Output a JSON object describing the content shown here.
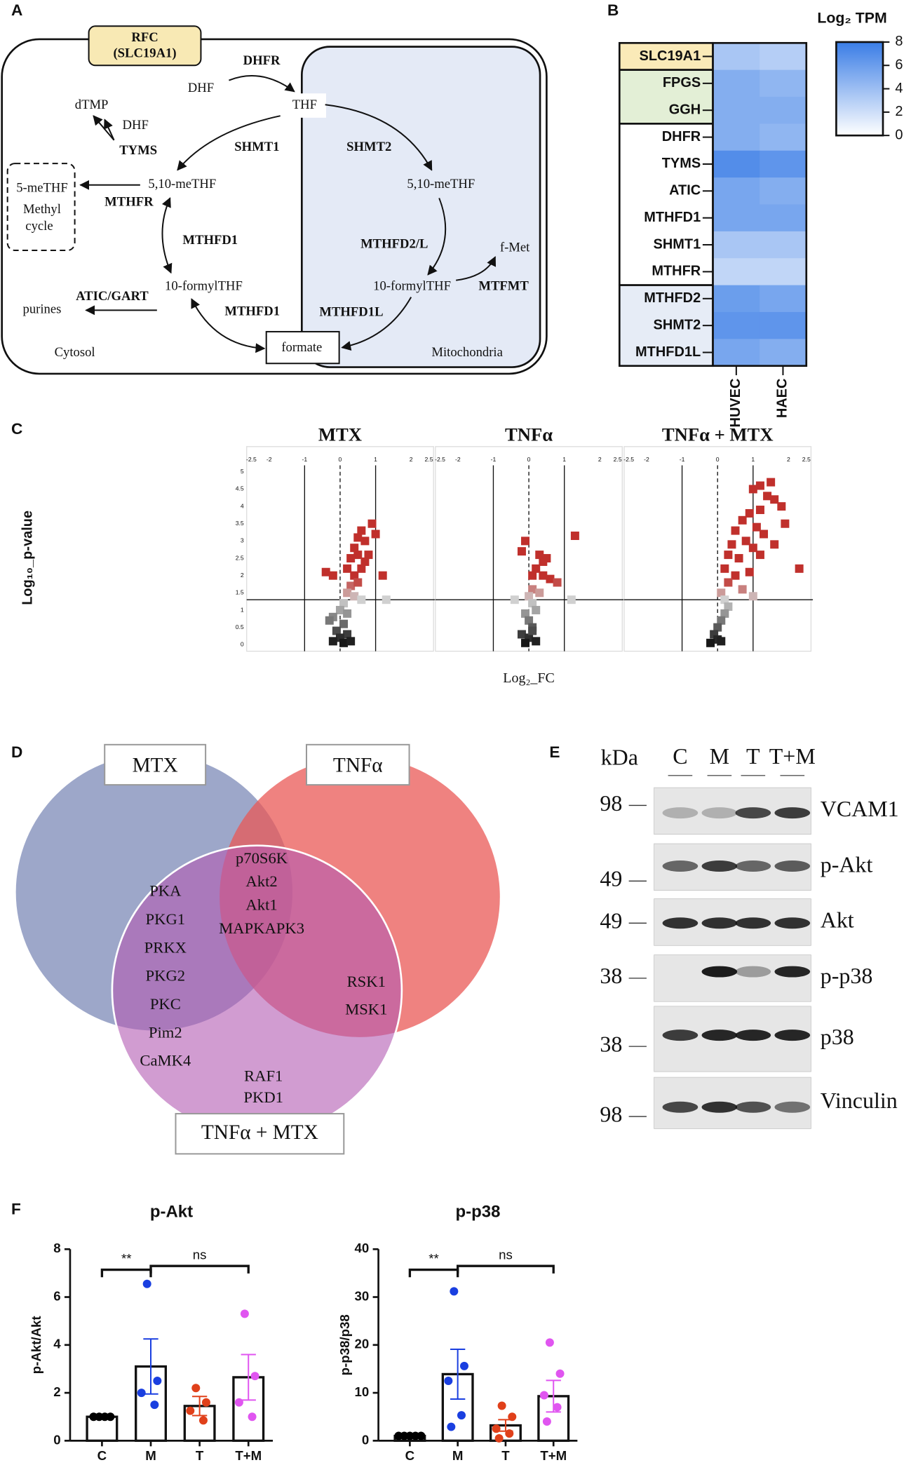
{
  "panel_labels": [
    "A",
    "B",
    "C",
    "D",
    "E",
    "F"
  ],
  "pathway": {
    "transporter": [
      "RFC",
      "(SLC19A1)"
    ],
    "enzymes": [
      "DHFR",
      "TYMS",
      "SHMT1",
      "SHMT2",
      "MTHFR",
      "MTHFD1",
      "MTHFD2/L",
      "MTFMT",
      "ATIC/GART",
      "MTHFD1",
      "MTHFD1L"
    ],
    "metabolites": [
      "DHF",
      "THF",
      "dTMP",
      "DHF",
      "5,10-meTHF",
      "5,10-meTHF",
      "5-meTHF",
      "Methyl",
      "cycle",
      "f-Met",
      "10-formylTHF",
      "10-formylTHF",
      "purines",
      "formate"
    ],
    "compartments": [
      "Cytosol",
      "Mitochondria"
    ]
  },
  "venn": {
    "sets": [
      "MTX",
      "TNFα",
      "TNFα + MTX"
    ],
    "mtx_combo": [
      "PKA",
      "PKG1",
      "PRKX",
      "PKG2",
      "PKC",
      "Pim2",
      "CaMK4"
    ],
    "all_three": [
      "p70S6K",
      "Akt2",
      "Akt1",
      "MAPKAPK3"
    ],
    "tnf_combo": [
      "RSK1",
      "MSK1"
    ],
    "combo_only": [
      "RAF1",
      "PKD1"
    ]
  },
  "western": {
    "header": "kDa",
    "lanes": [
      "C",
      "M",
      "T",
      "T+M"
    ],
    "rows": [
      {
        "protein": "VCAM1",
        "marker": 98
      },
      {
        "protein": "p-Akt",
        "marker": 49
      },
      {
        "protein": "Akt",
        "marker": 49
      },
      {
        "protein": "p-p38",
        "marker": 38
      },
      {
        "protein": "p38",
        "marker": 38
      },
      {
        "protein": "Vinculin",
        "marker": 98
      }
    ]
  },
  "chart_data": [
    {
      "type": "heatmap",
      "title": "Log₂ TPM",
      "rows": [
        "SLC19A1",
        "FPGS",
        "GGH",
        "DHFR",
        "TYMS",
        "ATIC",
        "MTHFD1",
        "SHMT1",
        "MTHFR",
        "MTHFD2",
        "SHMT2",
        "MTHFD1L"
      ],
      "columns": [
        "HUVEC",
        "HAEC"
      ],
      "values": [
        [
          3.5,
          3
        ],
        [
          5,
          4.5
        ],
        [
          5,
          5
        ],
        [
          5,
          4.5
        ],
        [
          7,
          6.5
        ],
        [
          5.5,
          5
        ],
        [
          5.5,
          5.5
        ],
        [
          3.5,
          3.5
        ],
        [
          2.5,
          2.5
        ],
        [
          6,
          5.5
        ],
        [
          6.5,
          6.5
        ],
        [
          5.5,
          5
        ]
      ],
      "clim": [
        0,
        8
      ],
      "cticks": [
        0,
        2,
        4,
        6,
        8
      ],
      "colors": [
        "#ffffff",
        "#3a7de6"
      ]
    },
    {
      "type": "scatter",
      "title": "MTX",
      "ylabel": "Log₁₀_p-value",
      "x": [
        -0.4,
        -0.2,
        0.2,
        0.3,
        0.4,
        0.5,
        0.6,
        0.7,
        0.5,
        0.8,
        0.9,
        1.0,
        0.6,
        0.4,
        0.7,
        0.3,
        0.5,
        1.2,
        0.2,
        0.4,
        0.6,
        1.3,
        0.1,
        0.0,
        -0.2,
        0.1,
        -0.1,
        0.2,
        0.0,
        -0.2,
        0.1,
        0.3,
        -0.3,
        0.2
      ],
      "y": [
        2.1,
        2.0,
        2.2,
        2.5,
        2.8,
        3.1,
        3.3,
        3.0,
        2.6,
        2.6,
        3.5,
        3.2,
        2.2,
        2.0,
        2.4,
        1.7,
        1.8,
        2.0,
        1.5,
        1.4,
        1.3,
        1.3,
        1.2,
        1.0,
        0.8,
        0.6,
        0.4,
        0.3,
        0.2,
        0.1,
        0.05,
        0.1,
        0.7,
        0.9
      ],
      "xlim": [
        -2.5,
        2.5
      ],
      "ylim": [
        0,
        5
      ],
      "xticks": [
        -2.5,
        -2,
        -1,
        0,
        1,
        2,
        2.5
      ],
      "yticks": [
        0,
        0.5,
        1,
        1.5,
        2,
        2.5,
        3,
        3.5,
        4,
        4.5,
        5
      ],
      "hline": 1.3,
      "vlines": [
        -1,
        0,
        1
      ],
      "point_colors": [
        "#111111",
        "#d0d0d0",
        "#c0302c"
      ]
    },
    {
      "type": "scatter",
      "title": "TNFα",
      "xlabel": "Log₂_FC",
      "x": [
        -0.1,
        1.3,
        -0.2,
        0.3,
        0.4,
        0.5,
        0.2,
        0.1,
        0.4,
        0.6,
        0.8,
        0.1,
        0.3,
        0.0,
        -0.4,
        1.2,
        0.1,
        0.2,
        -0.1,
        0.0,
        0.1,
        -0.2,
        0.0,
        0.2,
        -0.1,
        0.1
      ],
      "y": [
        3.0,
        3.15,
        2.7,
        2.6,
        2.4,
        2.5,
        2.2,
        2.0,
        2.0,
        1.9,
        1.8,
        1.6,
        1.5,
        1.4,
        1.3,
        1.3,
        1.2,
        1.0,
        0.9,
        0.7,
        0.5,
        0.3,
        0.2,
        0.1,
        0.05,
        0.4
      ],
      "xlim": [
        -2.5,
        2.5
      ],
      "ylim": [
        0,
        5
      ],
      "xticks": [
        -2.5,
        -2,
        -1,
        0,
        1,
        2,
        2.5
      ],
      "hline": 1.3,
      "vlines": [
        -1,
        0,
        1
      ],
      "point_colors": [
        "#111111",
        "#d0d0d0",
        "#c0302c"
      ]
    },
    {
      "type": "scatter",
      "title": "TNFα + MTX",
      "x": [
        1.0,
        1.2,
        1.5,
        1.4,
        1.6,
        1.8,
        1.2,
        0.9,
        0.7,
        1.1,
        0.5,
        1.3,
        1.9,
        0.4,
        0.8,
        1.0,
        1.6,
        0.3,
        0.6,
        1.2,
        2.3,
        0.2,
        0.5,
        0.9,
        0.3,
        0.1,
        0.7,
        1.0,
        0.2,
        0.3,
        0.2,
        0.1,
        0.0,
        -0.1,
        0.0,
        -0.2,
        0.1
      ],
      "y": [
        4.5,
        4.6,
        4.7,
        4.3,
        4.2,
        4.0,
        3.9,
        3.8,
        3.6,
        3.4,
        3.3,
        3.2,
        3.5,
        2.9,
        3.0,
        2.8,
        2.9,
        2.6,
        2.5,
        2.6,
        2.2,
        2.2,
        2.0,
        2.1,
        1.8,
        1.5,
        1.6,
        1.4,
        1.3,
        1.1,
        0.9,
        0.7,
        0.5,
        0.3,
        0.15,
        0.05,
        0.1
      ],
      "xlim": [
        -2.5,
        2.5
      ],
      "ylim": [
        0,
        5
      ],
      "xticks": [
        -2.5,
        -2,
        -1,
        0,
        1,
        2,
        2.5
      ],
      "hline": 1.3,
      "vlines": [
        -1,
        0,
        1
      ],
      "point_colors": [
        "#111111",
        "#d0d0d0",
        "#c0302c"
      ]
    },
    {
      "type": "bar",
      "title": "p-Akt",
      "ylabel": "p-Akt/Akt",
      "categories": [
        "C",
        "M",
        "T",
        "T+M"
      ],
      "values": [
        1.0,
        3.1,
        1.45,
        2.65
      ],
      "errors": [
        0.05,
        1.15,
        0.4,
        0.95
      ],
      "points": [
        [
          1,
          1,
          1,
          1
        ],
        [
          6.55,
          2.5,
          2.0,
          1.5
        ],
        [
          2.2,
          1.6,
          1.25,
          0.85
        ],
        [
          5.3,
          2.7,
          1.6,
          1.0
        ]
      ],
      "colors": [
        "#000000",
        "#1a3fe0",
        "#e0401a",
        "#e055f0"
      ],
      "ylim": [
        0,
        8
      ],
      "yticks": [
        0,
        2,
        4,
        6,
        8
      ],
      "annotations": [
        {
          "text": "**",
          "between": [
            0,
            1
          ]
        },
        {
          "text": "ns",
          "between": [
            1,
            3
          ]
        }
      ]
    },
    {
      "type": "bar",
      "title": "p-p38",
      "ylabel": "p-p38/p38",
      "categories": [
        "C",
        "M",
        "T",
        "T+M"
      ],
      "values": [
        1.0,
        13.9,
        3.2,
        9.3
      ],
      "errors": [
        0.1,
        5.2,
        1.2,
        3.3
      ],
      "points": [
        [
          1,
          1,
          1,
          1,
          1
        ],
        [
          31.2,
          15.6,
          12.5,
          5.3,
          2.9
        ],
        [
          7.3,
          5.0,
          2.5,
          1.5,
          0.5
        ],
        [
          20.5,
          14.0,
          9.5,
          7.0,
          4.0
        ]
      ],
      "colors": [
        "#000000",
        "#1a3fe0",
        "#e0401a",
        "#e055f0"
      ],
      "ylim": [
        0,
        40
      ],
      "yticks": [
        0,
        10,
        20,
        30,
        40
      ],
      "annotations": [
        {
          "text": "**",
          "between": [
            0,
            1
          ]
        },
        {
          "text": "ns",
          "between": [
            1,
            3
          ]
        }
      ]
    }
  ]
}
